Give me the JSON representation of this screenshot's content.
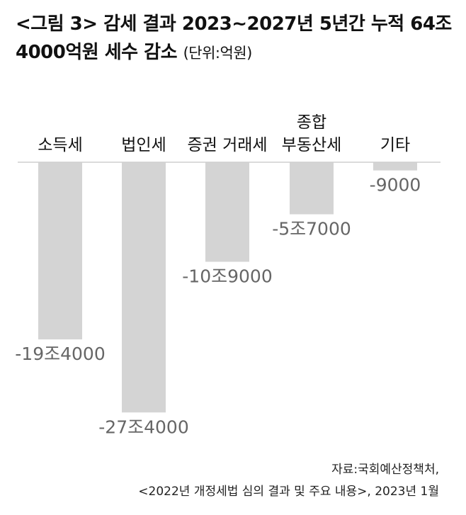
{
  "chart_data": {
    "type": "bar",
    "title": "<그림 3> 감세 결과 2023~2027년 5년간 누적 64조4000억원 세수 감소",
    "subtitle": "(단위:억원)",
    "categories": [
      "소득세",
      "법인세",
      "증권 거래세",
      "종합 부동산세",
      "기타"
    ],
    "values": [
      -194000,
      -274000,
      -109000,
      -57000,
      -9000
    ],
    "value_labels": [
      "-19조4000",
      "-27조4000",
      "-10조9000",
      "-5조7000",
      "-9000"
    ],
    "color": "#d4d4d4",
    "ylim": [
      -280000,
      0
    ],
    "source": [
      "자료:국회예산정책처,",
      "<2022년 개정세법 심의 결과 및 주요 내용>, 2023년 1월"
    ]
  }
}
